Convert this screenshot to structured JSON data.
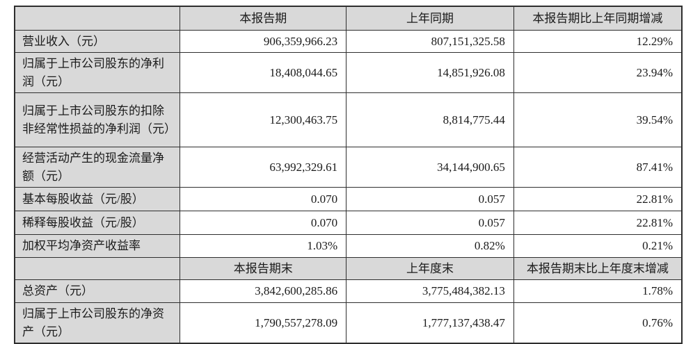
{
  "table": {
    "colors": {
      "header_bg": "#d9d9d9",
      "label_bg": "#d9d9d9",
      "border": "#2e2e2e",
      "text": "#1a1a1a"
    },
    "section1": {
      "header": {
        "blank": "",
        "current": "本报告期",
        "prior": "上年同期",
        "change": "本报告期比上年同期增减"
      },
      "rows": [
        {
          "label": "营业收入（元）",
          "current": "906,359,966.23",
          "prior": "807,151,325.58",
          "change": "12.29%"
        },
        {
          "label": "归属于上市公司股东的净利润（元）",
          "current": "18,408,044.65",
          "prior": "14,851,926.08",
          "change": "23.94%"
        },
        {
          "label": "归属于上市公司股东的扣除非经常性损益的净利润（元）",
          "current": "12,300,463.75",
          "prior": "8,814,775.44",
          "change": "39.54%"
        },
        {
          "label": "经营活动产生的现金流量净额（元）",
          "current": "63,992,329.61",
          "prior": "34,144,900.65",
          "change": "87.41%"
        },
        {
          "label": "基本每股收益（元/股）",
          "current": "0.070",
          "prior": "0.057",
          "change": "22.81%"
        },
        {
          "label": "稀释每股收益（元/股）",
          "current": "0.070",
          "prior": "0.057",
          "change": "22.81%"
        },
        {
          "label": "加权平均净资产收益率",
          "current": "1.03%",
          "prior": "0.82%",
          "change": "0.21%"
        }
      ]
    },
    "section2": {
      "header": {
        "blank": "",
        "current": "本报告期末",
        "prior": "上年度末",
        "change": "本报告期末比上年度末增减"
      },
      "rows": [
        {
          "label": "总资产（元）",
          "current": "3,842,600,285.86",
          "prior": "3,775,484,382.13",
          "change": "1.78%"
        },
        {
          "label": "归属于上市公司股东的净资产（元）",
          "current": "1,790,557,278.09",
          "prior": "1,777,137,438.47",
          "change": "0.76%"
        }
      ]
    }
  }
}
